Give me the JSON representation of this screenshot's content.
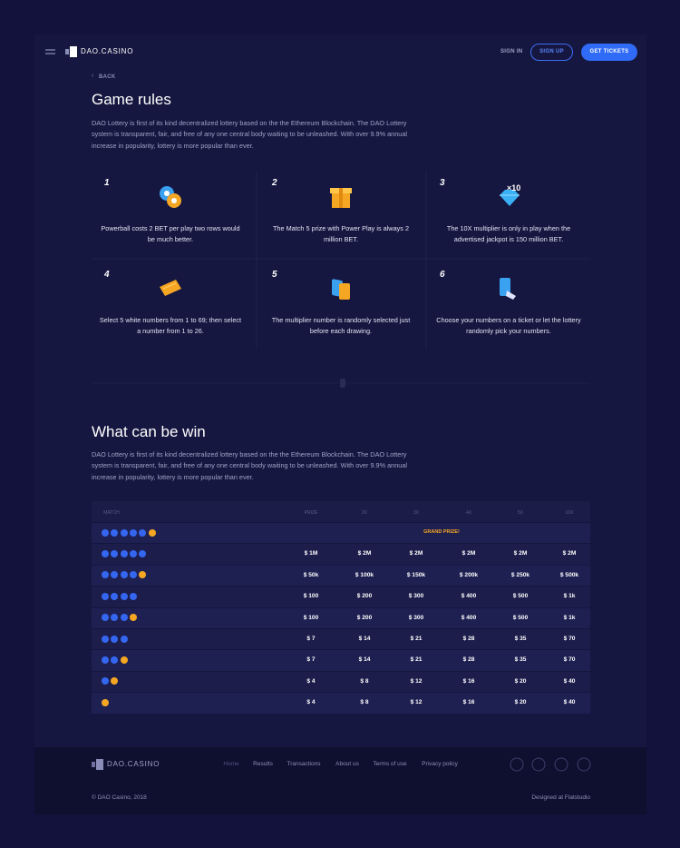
{
  "header": {
    "logo": "DAO.CASINO",
    "sign_in": "SIGN IN",
    "sign_up": "SIGN UP",
    "get_tickets": "GET TICKETS"
  },
  "back": "BACK",
  "rules": {
    "title": "Game rules",
    "intro": "DAO Lottery is first of its kind decentralized lottery based on the the Ethereum Blockchain. The DAO Lottery system is transparent, fair, and free of any one central body waiting to be unleashed. With over 9.9% annual increase in popularity, lottery is more popular than ever.",
    "multiplier_badge": "×10",
    "cards": [
      {
        "number": "1",
        "text": "Powerball costs 2 BET per play two rows would be much better."
      },
      {
        "number": "2",
        "text": "The Match 5 prize with Power Play is always 2 million BET."
      },
      {
        "number": "3",
        "text": "The 10X multiplier is only in play when the advertised jackpot is 150 million  BET."
      },
      {
        "number": "4",
        "text": "Select 5 white numbers from 1 to 69; then select a number from 1 to 26."
      },
      {
        "number": "5",
        "text": "The multiplier number is randomly selected just before each drawing."
      },
      {
        "number": "6",
        "text": "Choose your numbers on a ticket or let the lottery randomly pick your numbers."
      }
    ]
  },
  "prizes": {
    "title": "What can be win",
    "intro": "DAO Lottery is first of its kind decentralized lottery based on the the Ethereum Blockchain. The DAO Lottery system is transparent, fair, and free of any one central body waiting to be unleashed. With over 9.9% annual increase in popularity, lottery is more popular than ever.",
    "columns": [
      "MATCH",
      "PRIZE",
      "2X",
      "3X",
      "4X",
      "5X",
      "10X"
    ],
    "rows": [
      {
        "white_balls": 5,
        "powerball": 1,
        "grand": "GRAND PRIZE!"
      },
      {
        "white_balls": 5,
        "powerball": 0,
        "cells": [
          "$ 1M",
          "$ 2M",
          "$ 2M",
          "$ 2M",
          "$ 2M",
          "$ 2M"
        ]
      },
      {
        "white_balls": 4,
        "powerball": 1,
        "cells": [
          "$ 50k",
          "$ 100k",
          "$ 150k",
          "$ 200k",
          "$ 250k",
          "$ 500k"
        ]
      },
      {
        "white_balls": 4,
        "powerball": 0,
        "cells": [
          "$ 100",
          "$ 200",
          "$ 300",
          "$ 400",
          "$ 500",
          "$ 1k"
        ]
      },
      {
        "white_balls": 3,
        "powerball": 1,
        "cells": [
          "$ 100",
          "$ 200",
          "$ 300",
          "$ 400",
          "$ 500",
          "$ 1k"
        ]
      },
      {
        "white_balls": 3,
        "powerball": 0,
        "cells": [
          "$ 7",
          "$ 14",
          "$ 21",
          "$ 28",
          "$ 35",
          "$ 70"
        ]
      },
      {
        "white_balls": 2,
        "powerball": 1,
        "cells": [
          "$ 7",
          "$ 14",
          "$ 21",
          "$ 28",
          "$ 35",
          "$ 70"
        ]
      },
      {
        "white_balls": 1,
        "powerball": 1,
        "cells": [
          "$ 4",
          "$ 8",
          "$ 12",
          "$ 16",
          "$ 20",
          "$ 40"
        ]
      },
      {
        "white_balls": 0,
        "powerball": 1,
        "cells": [
          "$ 4",
          "$ 8",
          "$ 12",
          "$ 16",
          "$ 20",
          "$ 40"
        ]
      }
    ]
  },
  "footer": {
    "logo": "DAO.CASINO",
    "links": [
      "Home",
      "Results",
      "Transactions",
      "About us",
      "Terms of use",
      "Privacy policy"
    ],
    "copyright": "© DAO Casino, 2018",
    "credit": "Designed at Flatstudio"
  }
}
